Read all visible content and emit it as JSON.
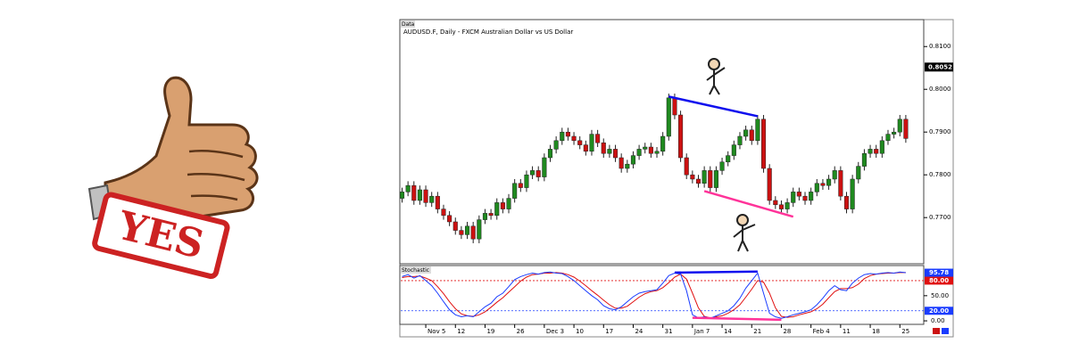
{
  "illustration": {
    "stamp_text": "YES"
  },
  "chart_data": [
    {
      "type": "candlestick",
      "panel_label": "Data",
      "title": "AUDUSD.F, Daily - FXCM Australian Dollar vs US Dollar",
      "up_color": "#1f8a1f",
      "down_color": "#cc1111",
      "categories": [
        null,
        null,
        null,
        null,
        "Nov 5",
        null,
        null,
        null,
        null,
        "12",
        null,
        null,
        null,
        null,
        "19",
        null,
        null,
        null,
        null,
        "26",
        null,
        null,
        null,
        null,
        "Dec 3",
        null,
        null,
        null,
        null,
        "10",
        null,
        null,
        null,
        null,
        "17",
        null,
        null,
        null,
        null,
        "24",
        null,
        null,
        null,
        null,
        "31",
        null,
        null,
        null,
        null,
        "Jan 7",
        null,
        null,
        null,
        null,
        "14",
        null,
        null,
        null,
        null,
        "21",
        null,
        null,
        null,
        null,
        "28",
        null,
        null,
        null,
        null,
        "Feb 4",
        null,
        null,
        null,
        null,
        "11",
        null,
        null,
        null,
        null,
        "18",
        null,
        null,
        null,
        null,
        "25",
        null
      ],
      "open": [
        0.7745,
        0.776,
        0.7775,
        0.774,
        0.7765,
        0.7735,
        0.775,
        0.772,
        0.7705,
        0.769,
        0.767,
        0.766,
        0.768,
        0.765,
        0.7695,
        0.771,
        0.7705,
        0.7735,
        0.772,
        0.7745,
        0.778,
        0.777,
        0.78,
        0.781,
        0.7795,
        0.784,
        0.786,
        0.788,
        0.79,
        0.789,
        0.788,
        0.787,
        0.7855,
        0.7895,
        0.7875,
        0.785,
        0.786,
        0.784,
        0.7815,
        0.7825,
        0.7845,
        0.786,
        0.7865,
        0.785,
        0.7855,
        0.789,
        0.798,
        0.794,
        0.784,
        0.78,
        0.779,
        0.778,
        0.781,
        0.777,
        0.781,
        0.783,
        0.7845,
        0.787,
        0.789,
        0.7905,
        0.788,
        0.793,
        0.7815,
        0.774,
        0.773,
        0.772,
        0.7735,
        0.776,
        0.775,
        0.774,
        0.776,
        0.778,
        0.7775,
        0.779,
        0.781,
        0.775,
        0.772,
        0.779,
        0.782,
        0.785,
        0.786,
        0.785,
        0.788,
        0.7895,
        0.79,
        0.793
      ],
      "high": [
        0.777,
        0.7785,
        0.7785,
        0.7775,
        0.7775,
        0.776,
        0.776,
        0.773,
        0.7715,
        0.77,
        0.768,
        0.769,
        0.769,
        0.7705,
        0.772,
        0.772,
        0.7745,
        0.7745,
        0.7755,
        0.779,
        0.779,
        0.781,
        0.782,
        0.782,
        0.785,
        0.787,
        0.789,
        0.791,
        0.791,
        0.79,
        0.789,
        0.788,
        0.7905,
        0.7905,
        0.7885,
        0.787,
        0.787,
        0.785,
        0.7835,
        0.7855,
        0.787,
        0.7875,
        0.7875,
        0.7865,
        0.79,
        0.799,
        0.799,
        0.795,
        0.785,
        0.781,
        0.78,
        0.782,
        0.782,
        0.782,
        0.784,
        0.7855,
        0.788,
        0.79,
        0.7915,
        0.7915,
        0.794,
        0.794,
        0.7825,
        0.775,
        0.774,
        0.7745,
        0.777,
        0.777,
        0.776,
        0.777,
        0.779,
        0.779,
        0.78,
        0.782,
        0.782,
        0.776,
        0.78,
        0.783,
        0.786,
        0.787,
        0.787,
        0.789,
        0.7905,
        0.791,
        0.794,
        0.794
      ],
      "low": [
        0.7735,
        0.775,
        0.773,
        0.773,
        0.7725,
        0.7725,
        0.771,
        0.7695,
        0.768,
        0.766,
        0.765,
        0.765,
        0.764,
        0.764,
        0.7685,
        0.7695,
        0.7695,
        0.771,
        0.771,
        0.7735,
        0.776,
        0.776,
        0.779,
        0.7785,
        0.7785,
        0.783,
        0.785,
        0.787,
        0.788,
        0.787,
        0.786,
        0.7845,
        0.7845,
        0.7865,
        0.784,
        0.784,
        0.783,
        0.7805,
        0.7805,
        0.7815,
        0.7835,
        0.785,
        0.784,
        0.784,
        0.7845,
        0.788,
        0.793,
        0.783,
        0.779,
        0.778,
        0.777,
        0.777,
        0.776,
        0.776,
        0.78,
        0.782,
        0.7835,
        0.786,
        0.788,
        0.787,
        0.787,
        0.7805,
        0.773,
        0.772,
        0.771,
        0.771,
        0.7725,
        0.774,
        0.773,
        0.773,
        0.775,
        0.7765,
        0.7765,
        0.778,
        0.774,
        0.771,
        0.771,
        0.778,
        0.781,
        0.784,
        0.784,
        0.784,
        0.787,
        0.7885,
        0.789,
        0.7875
      ],
      "close": [
        0.776,
        0.7775,
        0.774,
        0.7765,
        0.7735,
        0.775,
        0.772,
        0.7705,
        0.769,
        0.767,
        0.766,
        0.768,
        0.765,
        0.7695,
        0.771,
        0.7705,
        0.7735,
        0.772,
        0.7745,
        0.778,
        0.777,
        0.78,
        0.781,
        0.7795,
        0.784,
        0.786,
        0.788,
        0.79,
        0.789,
        0.788,
        0.787,
        0.7855,
        0.7895,
        0.7875,
        0.785,
        0.786,
        0.784,
        0.7815,
        0.7825,
        0.7845,
        0.786,
        0.7865,
        0.785,
        0.7855,
        0.789,
        0.798,
        0.794,
        0.784,
        0.78,
        0.779,
        0.778,
        0.781,
        0.777,
        0.781,
        0.783,
        0.7845,
        0.787,
        0.789,
        0.7905,
        0.788,
        0.793,
        0.7815,
        0.774,
        0.773,
        0.772,
        0.7735,
        0.776,
        0.775,
        0.774,
        0.776,
        0.778,
        0.7775,
        0.779,
        0.781,
        0.775,
        0.772,
        0.779,
        0.782,
        0.785,
        0.786,
        0.785,
        0.788,
        0.7895,
        0.79,
        0.793,
        0.7885
      ],
      "ylim": [
        0.7592,
        0.8163
      ],
      "yticks": [
        {
          "value": 0.77,
          "label": "0.7700"
        },
        {
          "value": 0.78,
          "label": "0.7800"
        },
        {
          "value": 0.79,
          "label": "0.7900"
        },
        {
          "value": 0.8,
          "label": "0.8000"
        },
        {
          "value": 0.81,
          "label": "0.8100"
        }
      ],
      "marker": {
        "value": 0.8052,
        "label": "0.8052"
      },
      "trendlines": [
        {
          "color": "#1010ee",
          "from": [
            45,
            0.7983
          ],
          "to": [
            60,
            0.7937
          ]
        },
        {
          "color": "#ff3399",
          "from": [
            51,
            0.7762
          ],
          "to": [
            66,
            0.7702
          ]
        }
      ]
    },
    {
      "type": "line",
      "title": "Stochastic",
      "series": [
        {
          "color": "#1a3cff",
          "values": [
            88,
            92,
            85,
            90,
            80,
            70,
            55,
            38,
            22,
            12,
            8,
            10,
            8,
            18,
            28,
            35,
            48,
            55,
            68,
            82,
            88,
            92,
            95,
            93,
            96,
            97,
            95,
            94,
            88,
            80,
            70,
            60,
            50,
            42,
            30,
            24,
            22,
            28,
            38,
            48,
            55,
            58,
            60,
            62,
            75,
            90,
            95,
            93,
            60,
            12,
            6,
            8,
            5,
            10,
            15,
            20,
            30,
            45,
            65,
            80,
            95,
            55,
            15,
            8,
            5,
            8,
            12,
            15,
            18,
            22,
            32,
            45,
            60,
            70,
            62,
            60,
            75,
            85,
            92,
            94,
            93,
            95,
            96,
            95,
            97,
            95.78
          ]
        },
        {
          "color": "#e01010",
          "values": [
            86,
            88,
            88,
            89,
            85,
            80,
            68,
            54,
            38,
            24,
            14,
            10,
            9,
            12,
            18,
            27,
            37,
            46,
            57,
            68,
            79,
            87,
            92,
            93,
            95,
            95,
            96,
            95,
            92,
            87,
            79,
            70,
            60,
            51,
            41,
            32,
            25,
            25,
            29,
            38,
            47,
            54,
            58,
            60,
            66,
            76,
            87,
            93,
            83,
            55,
            26,
            9,
            6,
            8,
            10,
            15,
            22,
            32,
            47,
            63,
            80,
            77,
            55,
            26,
            9,
            7,
            8,
            12,
            15,
            18,
            24,
            33,
            46,
            58,
            64,
            64,
            66,
            73,
            84,
            90,
            93,
            94,
            95,
            95,
            96,
            96
          ]
        }
      ],
      "last_label": "95.78",
      "ylim": [
        -7,
        110
      ],
      "yticks": [
        {
          "value": 0,
          "label": "0.00"
        },
        {
          "value": 50,
          "label": "50.00"
        }
      ],
      "levels": [
        {
          "value": 80,
          "label": "80.00",
          "color": "#e01010"
        },
        {
          "value": 20,
          "label": "20.00",
          "color": "#1a3cff"
        }
      ],
      "trendlines": [
        {
          "color": "#1010ee",
          "from": [
            46,
            96
          ],
          "to": [
            60,
            98
          ]
        },
        {
          "color": "#ff3399",
          "from": [
            49,
            6
          ],
          "to": [
            64,
            2
          ]
        }
      ]
    }
  ]
}
